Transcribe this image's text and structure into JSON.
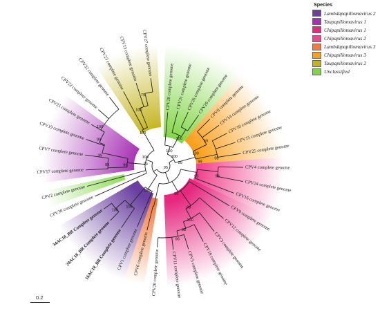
{
  "legend": {
    "title": "Species",
    "items": [
      {
        "label": "Lambdapapillomavirus 2",
        "color": "#6a3fa0"
      },
      {
        "label": "Taupapillomavirus 1",
        "color": "#a62fb4"
      },
      {
        "label": "Chipapillomavirus 1",
        "color": "#e6287f"
      },
      {
        "label": "Chipapillomavirus 2",
        "color": "#f0458f"
      },
      {
        "label": "Lambdapapillomavirus 3",
        "color": "#f5793a"
      },
      {
        "label": "Chipapillomavirus 3",
        "color": "#f9a01b"
      },
      {
        "label": "Taupapillomavirus 2",
        "color": "#c4b41a"
      },
      {
        "label": "Unclassified",
        "color": "#7fd641"
      }
    ]
  },
  "scale": {
    "label": "0.2"
  },
  "tips": [
    {
      "label": "CPV28 complete genome"
    },
    {
      "label": "CPV31 complete genome"
    },
    {
      "label": "CPV26 complete genome"
    },
    {
      "label": "CPV29 complete genome"
    },
    {
      "label": "CPV8 complete genome"
    },
    {
      "label": "CPV14 complete genome"
    },
    {
      "label": "CPV10 complete genome"
    },
    {
      "label": "CPV15 complete genome"
    },
    {
      "label": "CPV25 complete genome"
    },
    {
      "label": "CPV4 complete genome"
    },
    {
      "label": "CPV24 complete genome"
    },
    {
      "label": "CPV16 complete genome"
    },
    {
      "label": "CPV9 complete genome"
    },
    {
      "label": "CPV12 complete genome"
    },
    {
      "label": "CPV3 complete genome"
    },
    {
      "label": "CPV18 complete genome"
    },
    {
      "label": "CPV5 complete genome"
    },
    {
      "label": "CPV11 complete genome"
    },
    {
      "label": "CPV20 complete genome"
    },
    {
      "label": "CPV6 complete genome"
    },
    {
      "label": "CPV1 complete genome"
    },
    {
      "label": "16AC18_BR Complete genome"
    },
    {
      "label": "20AC18_BR Complete genome"
    },
    {
      "label": "34AC18_BR Complete genome"
    },
    {
      "label": "CPV30 complete genome"
    },
    {
      "label": "CPV2 complete genome"
    },
    {
      "label": "CPV17 complete genome"
    },
    {
      "label": "CPV7 complete genome"
    },
    {
      "label": "CPV19 complete genome"
    },
    {
      "label": "CPV21 complete genome"
    },
    {
      "label": "CPV22 complete genome"
    },
    {
      "label": "CPV32 complete genome"
    },
    {
      "label": "CPV23 complete genome"
    },
    {
      "label": "CPV13 complete genome"
    },
    {
      "label": "CPV27 complete genome"
    }
  ],
  "bootstrap": [
    "100",
    "100",
    "100",
    "95",
    "99",
    "59",
    "100",
    "98",
    "99",
    "98",
    "93",
    "99",
    "98",
    "100",
    "100",
    "98",
    "100",
    "100",
    "100",
    "96",
    "99",
    "99",
    "99",
    "99",
    "99",
    "100",
    "100",
    "79",
    "100"
  ]
}
